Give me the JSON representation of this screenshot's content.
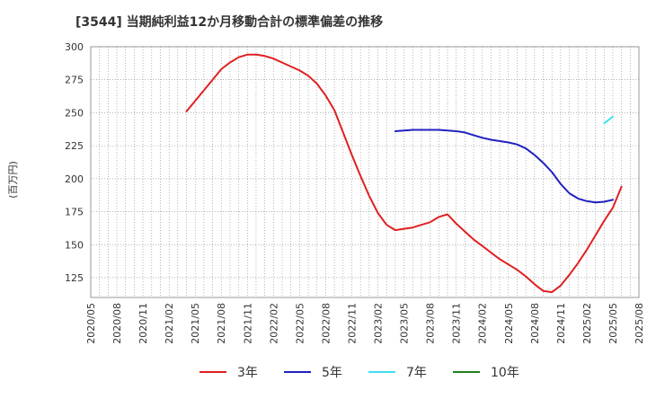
{
  "chart_data": {
    "type": "line",
    "title": "[3544]  当期純利益12か月移動合計の標準偏差の推移",
    "ylabel": "(百万円)",
    "xlabel": "",
    "ylim": [
      110,
      300
    ],
    "yticks": [
      125,
      150,
      175,
      200,
      225,
      250,
      275,
      300
    ],
    "xticks": [
      "2020/05",
      "2020/08",
      "2020/11",
      "2021/02",
      "2021/05",
      "2021/08",
      "2021/11",
      "2022/02",
      "2022/05",
      "2022/08",
      "2022/11",
      "2023/02",
      "2023/05",
      "2023/08",
      "2023/11",
      "2024/02",
      "2024/05",
      "2024/08",
      "2024/11",
      "2025/02",
      "2025/05",
      "2025/08"
    ],
    "grid": true,
    "legend_position": "bottom",
    "series": [
      {
        "name": "3年",
        "color": "#e02020",
        "points": [
          [
            "2021/04",
            251
          ],
          [
            "2021/05",
            259
          ],
          [
            "2021/06",
            267
          ],
          [
            "2021/07",
            275
          ],
          [
            "2021/08",
            283
          ],
          [
            "2021/09",
            288
          ],
          [
            "2021/10",
            292
          ],
          [
            "2021/11",
            294
          ],
          [
            "2021/12",
            294
          ],
          [
            "2022/01",
            293
          ],
          [
            "2022/02",
            291
          ],
          [
            "2022/03",
            288
          ],
          [
            "2022/04",
            285
          ],
          [
            "2022/05",
            282
          ],
          [
            "2022/06",
            278
          ],
          [
            "2022/07",
            272
          ],
          [
            "2022/08",
            263
          ],
          [
            "2022/09",
            252
          ],
          [
            "2022/10",
            235
          ],
          [
            "2022/11",
            218
          ],
          [
            "2022/12",
            202
          ],
          [
            "2023/01",
            187
          ],
          [
            "2023/02",
            174
          ],
          [
            "2023/03",
            165
          ],
          [
            "2023/04",
            161
          ],
          [
            "2023/05",
            162
          ],
          [
            "2023/06",
            163
          ],
          [
            "2023/07",
            165
          ],
          [
            "2023/08",
            167
          ],
          [
            "2023/09",
            171
          ],
          [
            "2023/10",
            173
          ],
          [
            "2023/11",
            166
          ],
          [
            "2023/12",
            160
          ],
          [
            "2024/01",
            154
          ],
          [
            "2024/02",
            149
          ],
          [
            "2024/03",
            144
          ],
          [
            "2024/04",
            139
          ],
          [
            "2024/05",
            135
          ],
          [
            "2024/06",
            131
          ],
          [
            "2024/07",
            126
          ],
          [
            "2024/08",
            120
          ],
          [
            "2024/09",
            115
          ],
          [
            "2024/10",
            114
          ],
          [
            "2024/11",
            119
          ],
          [
            "2024/12",
            127
          ],
          [
            "2025/01",
            136
          ],
          [
            "2025/02",
            146
          ],
          [
            "2025/03",
            157
          ],
          [
            "2025/04",
            168
          ],
          [
            "2025/05",
            178
          ],
          [
            "2025/06",
            194
          ]
        ]
      },
      {
        "name": "5年",
        "color": "#2020c0",
        "points": [
          [
            "2023/04",
            236
          ],
          [
            "2023/05",
            236.5
          ],
          [
            "2023/06",
            237
          ],
          [
            "2023/07",
            237
          ],
          [
            "2023/08",
            237
          ],
          [
            "2023/09",
            237
          ],
          [
            "2023/10",
            236.5
          ],
          [
            "2023/11",
            236
          ],
          [
            "2023/12",
            235
          ],
          [
            "2024/01",
            233
          ],
          [
            "2024/02",
            231
          ],
          [
            "2024/03",
            229.5
          ],
          [
            "2024/04",
            228.5
          ],
          [
            "2024/05",
            227.5
          ],
          [
            "2024/06",
            226
          ],
          [
            "2024/07",
            223
          ],
          [
            "2024/08",
            218
          ],
          [
            "2024/09",
            212
          ],
          [
            "2024/10",
            205
          ],
          [
            "2024/11",
            196
          ],
          [
            "2024/12",
            189
          ],
          [
            "2025/01",
            185
          ],
          [
            "2025/02",
            183
          ],
          [
            "2025/03",
            182
          ],
          [
            "2025/04",
            182.5
          ],
          [
            "2025/05",
            184
          ]
        ]
      },
      {
        "name": "7年",
        "color": "#40e0f0",
        "points": [
          [
            "2025/04",
            242
          ],
          [
            "2025/05",
            247
          ]
        ]
      },
      {
        "name": "10年",
        "color": "#208020",
        "points": []
      }
    ]
  }
}
